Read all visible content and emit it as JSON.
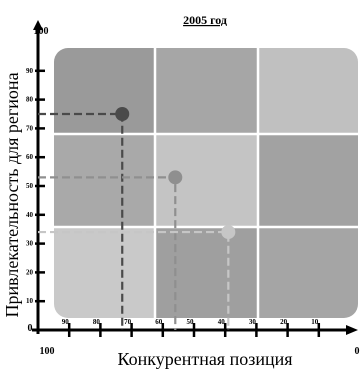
{
  "chart_data": {
    "type": "scatter",
    "title": "2005 год",
    "xlabel": "Конкурентная позиция",
    "ylabel": "Привлекательность для региона",
    "xlim": [
      100,
      0
    ],
    "ylim": [
      0,
      100
    ],
    "x_end_labels": [
      "100",
      "0"
    ],
    "y_end_labels": [
      "0",
      "100"
    ],
    "x_ticks": [
      "90",
      "80",
      "70",
      "60",
      "50",
      "40",
      "30",
      "20",
      "10"
    ],
    "y_ticks": [
      "10",
      "20",
      "30",
      "40",
      "50",
      "60",
      "70",
      "80",
      "90"
    ],
    "grid": "3x3 matrix",
    "points": [
      {
        "x": 73,
        "y": 75,
        "color": "#4a4a4a"
      },
      {
        "x": 56,
        "y": 53,
        "color": "#8f8f8f"
      },
      {
        "x": 39,
        "y": 34,
        "color": "#c6c6c6"
      }
    ],
    "cell_colors": [
      [
        "#9a9a9a",
        "#a6a6a6",
        "#c0c0c0"
      ],
      [
        "#a9a9a9",
        "#c4c4c4",
        "#a2a2a2"
      ],
      [
        "#c9c9c9",
        "#9f9f9f",
        "#a5a5a5"
      ]
    ]
  }
}
